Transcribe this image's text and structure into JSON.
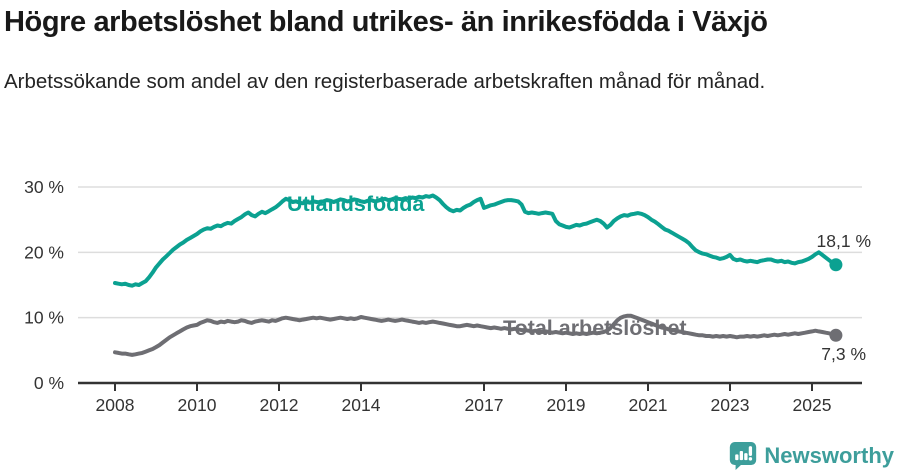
{
  "header": {
    "title": "Högre arbetslöshet bland utrikes- än inrikesfödda i Växjö",
    "subtitle": "Arbetssökande som andel av den registerbaserade arbetskraften månad för månad."
  },
  "footer": {
    "brand": "Newsworthy",
    "brand_color": "#3d9e9b",
    "logo_icon": "speech-bubble-bar-chart-icon"
  },
  "colors": {
    "foreign_born_line": "#0ba191",
    "total_line": "#6e6e73",
    "gridline": "#dddddd",
    "axis": "#333333",
    "end_label_text": "#333333"
  },
  "chart_data": {
    "type": "line",
    "title": "Högre arbetslöshet bland utrikes- än inrikesfödda i Växjö",
    "subtitle": "Arbetssökande som andel av den registerbaserade arbetskraften månad för månad.",
    "xlabel": "",
    "ylabel": "",
    "x_unit": "month",
    "x_start": "2008-01",
    "x_end": "2025-08",
    "ylim": [
      0,
      30
    ],
    "grid": "horizontal",
    "legend": "inline-labels",
    "xticks": [
      {
        "year": 2008,
        "label": "2008"
      },
      {
        "year": 2010,
        "label": "2010"
      },
      {
        "year": 2012,
        "label": "2012"
      },
      {
        "year": 2014,
        "label": "2014"
      },
      {
        "year": 2017,
        "label": "2017"
      },
      {
        "year": 2019,
        "label": "2019"
      },
      {
        "year": 2021,
        "label": "2021"
      },
      {
        "year": 2023,
        "label": "2023"
      },
      {
        "year": 2025,
        "label": "2025"
      }
    ],
    "yticks": [
      {
        "value": 0,
        "label": "0 %"
      },
      {
        "value": 10,
        "label": "10 %"
      },
      {
        "value": 20,
        "label": "20 %"
      },
      {
        "value": 30,
        "label": "30 %"
      }
    ],
    "series": [
      {
        "name": "Utlandsfödda",
        "color": "#0ba191",
        "end_label": "18,1 %",
        "end_value": 18.1,
        "values": [
          15.3,
          15.2,
          15.1,
          15.2,
          15.0,
          14.9,
          15.1,
          15.0,
          15.3,
          15.6,
          16.2,
          16.9,
          17.7,
          18.3,
          18.9,
          19.4,
          19.9,
          20.4,
          20.8,
          21.2,
          21.5,
          21.9,
          22.2,
          22.5,
          22.8,
          23.2,
          23.5,
          23.7,
          23.6,
          23.9,
          24.1,
          24.0,
          24.3,
          24.5,
          24.4,
          24.8,
          25.1,
          25.4,
          25.8,
          26.1,
          25.7,
          25.5,
          25.9,
          26.2,
          26.0,
          26.3,
          26.6,
          26.9,
          27.3,
          27.8,
          28.2,
          28.0,
          27.7,
          27.8,
          27.6,
          27.5,
          27.7,
          27.6,
          27.8,
          27.7,
          27.6,
          27.8,
          28.0,
          27.9,
          27.7,
          27.9,
          28.1,
          28.0,
          27.8,
          27.9,
          28.1,
          28.0,
          27.8,
          27.7,
          27.9,
          28.0,
          27.8,
          27.9,
          28.1,
          28.2,
          28.0,
          28.1,
          28.3,
          28.2,
          28.1,
          28.3,
          28.2,
          28.4,
          28.3,
          28.5,
          28.4,
          28.6,
          28.5,
          28.7,
          28.4,
          28.0,
          27.4,
          26.9,
          26.5,
          26.3,
          26.5,
          26.4,
          26.8,
          27.1,
          27.3,
          27.7,
          28.0,
          28.2,
          26.8,
          27.0,
          27.2,
          27.3,
          27.5,
          27.7,
          27.9,
          28.0,
          28.0,
          27.9,
          27.8,
          27.3,
          26.2,
          26.0,
          26.1,
          26.0,
          25.9,
          26.0,
          26.1,
          26.0,
          25.9,
          24.8,
          24.3,
          24.1,
          23.9,
          23.8,
          24.0,
          24.2,
          24.1,
          24.3,
          24.4,
          24.6,
          24.8,
          25.0,
          24.8,
          24.4,
          23.8,
          24.2,
          24.8,
          25.2,
          25.5,
          25.7,
          25.6,
          25.8,
          25.9,
          26.0,
          25.9,
          25.7,
          25.4,
          25.0,
          24.7,
          24.3,
          23.9,
          23.5,
          23.3,
          23.0,
          22.7,
          22.4,
          22.1,
          21.8,
          21.4,
          20.8,
          20.3,
          20.0,
          19.8,
          19.7,
          19.5,
          19.3,
          19.2,
          19.0,
          19.1,
          19.3,
          19.6,
          19.0,
          18.8,
          18.9,
          18.7,
          18.6,
          18.7,
          18.6,
          18.5,
          18.7,
          18.8,
          18.9,
          18.9,
          18.7,
          18.6,
          18.7,
          18.5,
          18.6,
          18.4,
          18.3,
          18.5,
          18.6,
          18.8,
          19.0,
          19.3,
          19.7,
          20.0,
          19.6,
          19.2,
          18.8,
          18.4,
          18.1
        ]
      },
      {
        "name": "Total arbetslöshet",
        "color": "#6e6e73",
        "end_label": "7,3 %",
        "end_value": 7.3,
        "values": [
          4.7,
          4.6,
          4.5,
          4.5,
          4.4,
          4.3,
          4.4,
          4.5,
          4.6,
          4.8,
          5.0,
          5.2,
          5.5,
          5.8,
          6.2,
          6.6,
          7.0,
          7.3,
          7.6,
          7.9,
          8.2,
          8.5,
          8.7,
          8.8,
          8.9,
          9.2,
          9.4,
          9.6,
          9.5,
          9.3,
          9.2,
          9.4,
          9.3,
          9.5,
          9.4,
          9.3,
          9.4,
          9.6,
          9.5,
          9.3,
          9.2,
          9.4,
          9.5,
          9.6,
          9.5,
          9.4,
          9.6,
          9.5,
          9.7,
          9.9,
          10.0,
          9.9,
          9.8,
          9.7,
          9.6,
          9.7,
          9.8,
          9.9,
          10.0,
          9.9,
          10.0,
          9.9,
          9.8,
          9.7,
          9.8,
          9.9,
          10.0,
          9.9,
          9.8,
          9.9,
          9.8,
          9.9,
          10.1,
          10.0,
          9.9,
          9.8,
          9.7,
          9.6,
          9.5,
          9.6,
          9.7,
          9.6,
          9.5,
          9.6,
          9.7,
          9.6,
          9.5,
          9.4,
          9.3,
          9.2,
          9.3,
          9.2,
          9.3,
          9.4,
          9.3,
          9.2,
          9.1,
          9.0,
          8.9,
          8.8,
          8.7,
          8.7,
          8.8,
          8.9,
          8.8,
          8.7,
          8.8,
          8.7,
          8.6,
          8.5,
          8.4,
          8.5,
          8.4,
          8.3,
          8.4,
          8.3,
          8.2,
          8.3,
          8.2,
          8.1,
          8.1,
          8.0,
          7.9,
          8.0,
          7.9,
          7.8,
          7.9,
          7.8,
          7.7,
          7.8,
          7.7,
          7.6,
          7.7,
          7.6,
          7.5,
          7.6,
          7.5,
          7.6,
          7.5,
          7.6,
          7.7,
          7.6,
          7.7,
          7.8,
          8.0,
          8.4,
          9.0,
          9.6,
          10.0,
          10.2,
          10.3,
          10.3,
          10.1,
          9.9,
          9.7,
          9.5,
          9.3,
          9.1,
          8.9,
          8.7,
          8.5,
          8.4,
          8.2,
          8.1,
          8.0,
          7.9,
          7.8,
          7.7,
          7.6,
          7.5,
          7.4,
          7.3,
          7.3,
          7.2,
          7.2,
          7.1,
          7.2,
          7.1,
          7.2,
          7.1,
          7.2,
          7.1,
          7.0,
          7.1,
          7.1,
          7.2,
          7.1,
          7.2,
          7.1,
          7.2,
          7.3,
          7.2,
          7.3,
          7.4,
          7.3,
          7.4,
          7.5,
          7.4,
          7.5,
          7.6,
          7.5,
          7.6,
          7.7,
          7.8,
          7.9,
          8.0,
          7.9,
          7.8,
          7.7,
          7.6,
          7.4,
          7.3
        ]
      }
    ]
  }
}
